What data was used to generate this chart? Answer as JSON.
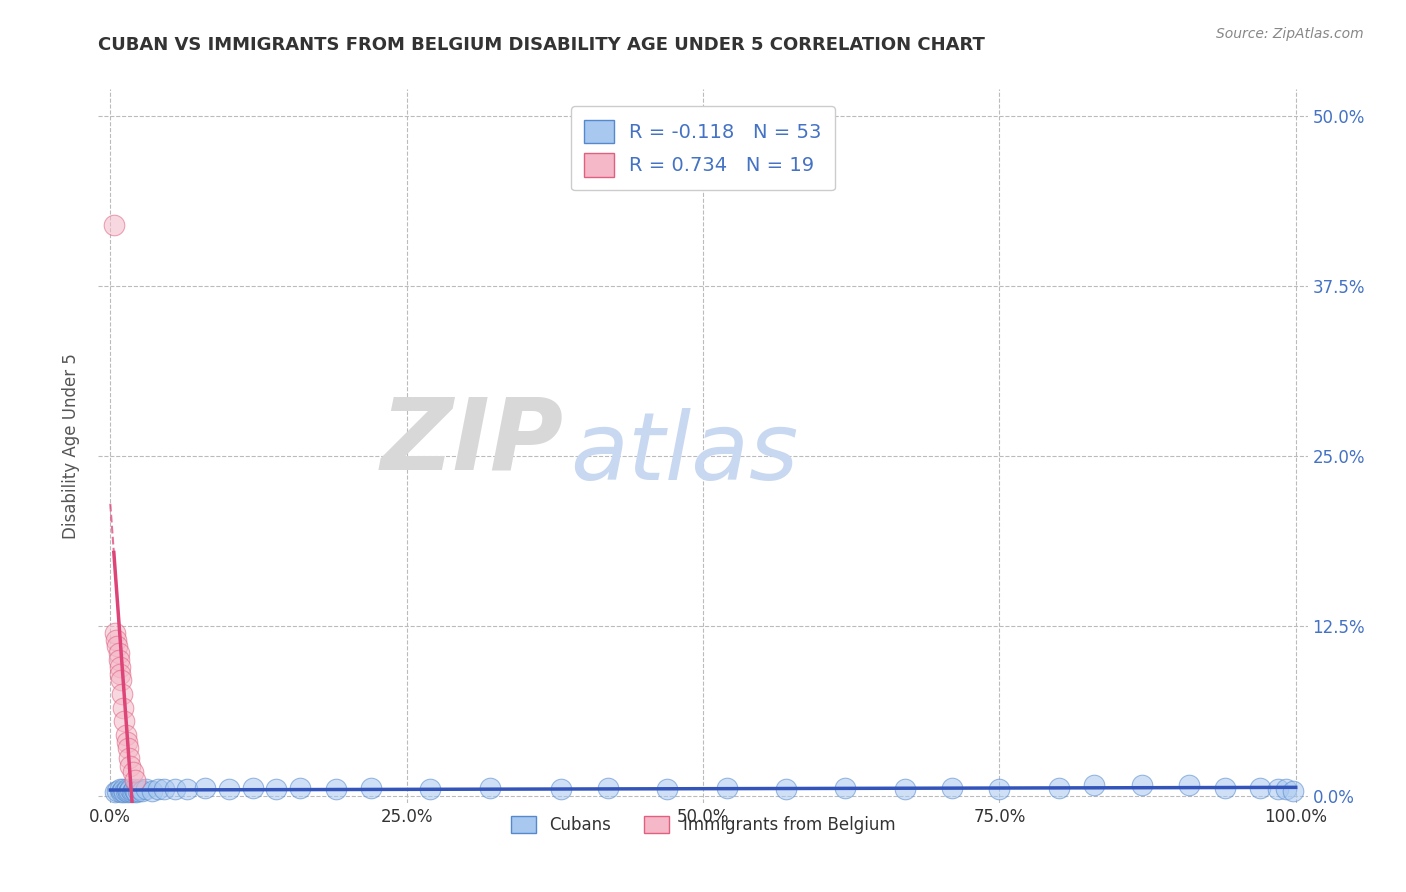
{
  "title": "CUBAN VS IMMIGRANTS FROM BELGIUM DISABILITY AGE UNDER 5 CORRELATION CHART",
  "source": "Source: ZipAtlas.com",
  "ylabel": "Disability Age Under 5",
  "xlabel": "",
  "xlim": [
    -0.01,
    1.01
  ],
  "ylim": [
    -0.005,
    0.52
  ],
  "yticks": [
    0.0,
    0.125,
    0.25,
    0.375,
    0.5
  ],
  "ytick_labels": [
    "0.0%",
    "12.5%",
    "25.0%",
    "37.5%",
    "50.0%"
  ],
  "xticks": [
    0.0,
    0.25,
    0.5,
    0.75,
    1.0
  ],
  "xtick_labels": [
    "0.0%",
    "25.0%",
    "50.0%",
    "75.0%",
    "100.0%"
  ],
  "cuban_R": -0.118,
  "cuban_N": 53,
  "belgium_R": 0.734,
  "belgium_N": 19,
  "legend_cuban_label": "Cubans",
  "legend_belgium_label": "Immigrants from Belgium",
  "background_color": "#ffffff",
  "plot_bg_color": "#ffffff",
  "grid_color": "#bbbbbb",
  "title_color": "#333333",
  "axis_label_color": "#555555",
  "blue_scatter_fill": "#a8c8f0",
  "blue_scatter_edge": "#5588cc",
  "pink_scatter_fill": "#f4b8c8",
  "pink_scatter_edge": "#e06080",
  "blue_line_color": "#3355bb",
  "pink_line_color": "#dd4477",
  "right_tick_color": "#4472c4",
  "watermark_zip_color": "#d8d8d8",
  "watermark_atlas_color": "#c8d8f0",
  "cuban_x": [
    0.004,
    0.006,
    0.008,
    0.009,
    0.01,
    0.011,
    0.012,
    0.013,
    0.014,
    0.015,
    0.016,
    0.017,
    0.018,
    0.019,
    0.02,
    0.021,
    0.022,
    0.023,
    0.025,
    0.027,
    0.03,
    0.035,
    0.04,
    0.045,
    0.055,
    0.065,
    0.08,
    0.1,
    0.12,
    0.14,
    0.16,
    0.19,
    0.22,
    0.27,
    0.32,
    0.38,
    0.42,
    0.47,
    0.52,
    0.57,
    0.62,
    0.67,
    0.71,
    0.75,
    0.8,
    0.83,
    0.87,
    0.91,
    0.94,
    0.97,
    0.985,
    0.992,
    0.998
  ],
  "cuban_y": [
    0.003,
    0.004,
    0.005,
    0.003,
    0.004,
    0.005,
    0.003,
    0.004,
    0.005,
    0.003,
    0.004,
    0.005,
    0.003,
    0.004,
    0.005,
    0.004,
    0.003,
    0.004,
    0.005,
    0.004,
    0.005,
    0.004,
    0.005,
    0.005,
    0.005,
    0.005,
    0.006,
    0.005,
    0.006,
    0.005,
    0.006,
    0.005,
    0.006,
    0.005,
    0.006,
    0.005,
    0.006,
    0.005,
    0.006,
    0.005,
    0.006,
    0.005,
    0.006,
    0.005,
    0.006,
    0.008,
    0.008,
    0.008,
    0.006,
    0.006,
    0.005,
    0.005,
    0.004
  ],
  "belgium_x": [
    0.003,
    0.004,
    0.005,
    0.006,
    0.007,
    0.007,
    0.008,
    0.008,
    0.009,
    0.01,
    0.011,
    0.012,
    0.013,
    0.014,
    0.015,
    0.016,
    0.017,
    0.019,
    0.021
  ],
  "belgium_y": [
    0.42,
    0.12,
    0.115,
    0.11,
    0.105,
    0.1,
    0.095,
    0.09,
    0.085,
    0.075,
    0.065,
    0.055,
    0.045,
    0.04,
    0.035,
    0.028,
    0.022,
    0.018,
    0.012
  ]
}
